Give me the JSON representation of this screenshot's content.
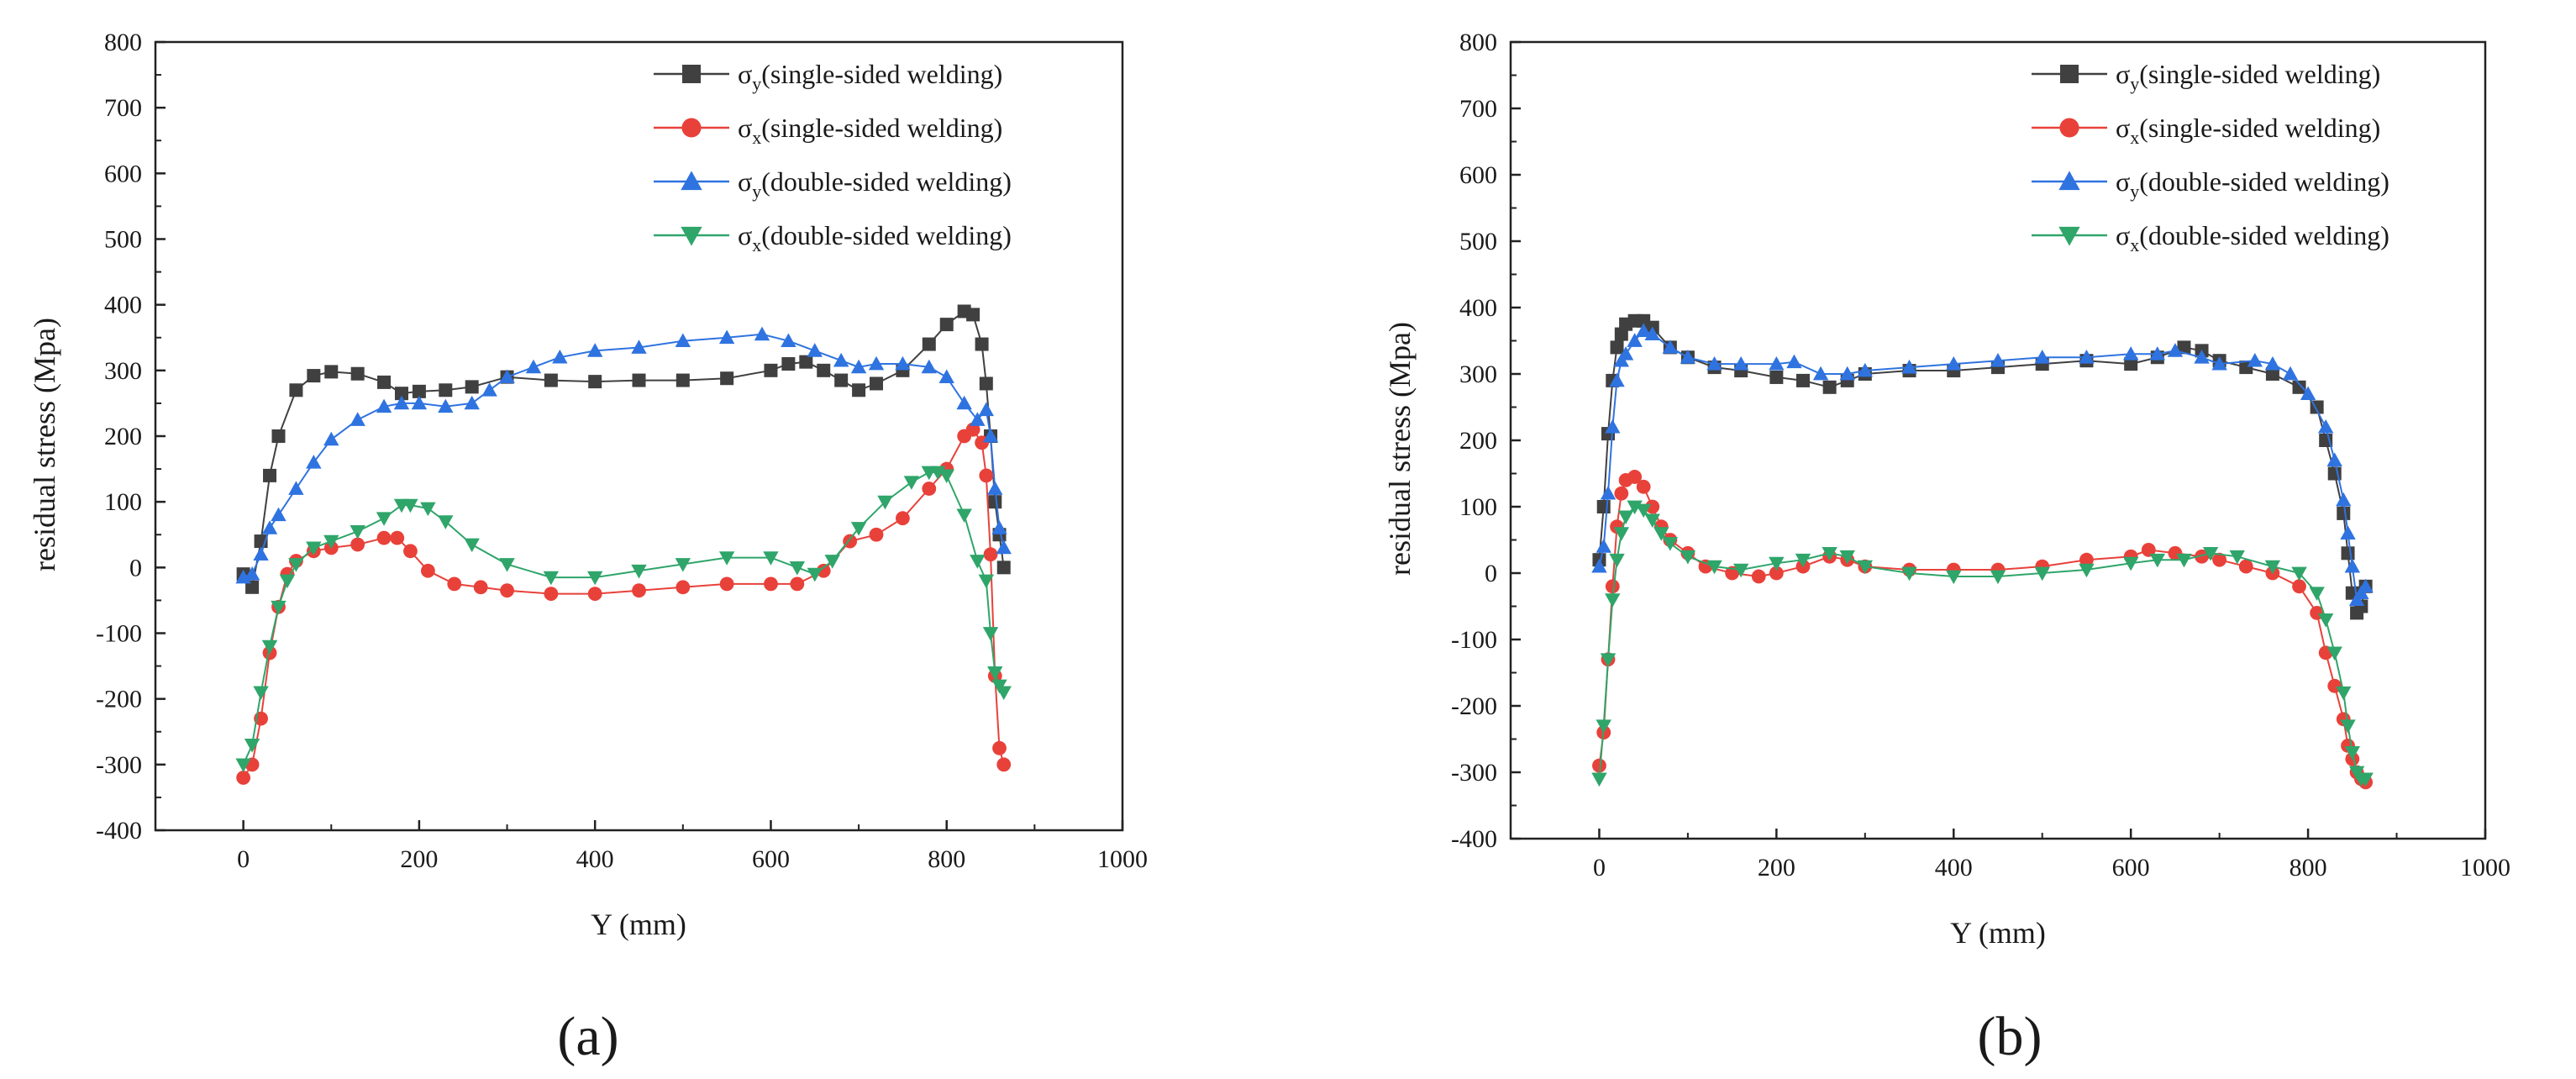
{
  "chart_data": [
    {
      "type": "line",
      "title": "",
      "panel_label": "(a)",
      "xlabel": "Y (mm)",
      "ylabel": "residual stress (Mpa)",
      "xlim": [
        -100,
        1000
      ],
      "ylim": [
        -400,
        800
      ],
      "xticks": [
        0,
        200,
        400,
        600,
        800,
        1000
      ],
      "yticks": [
        -400,
        -300,
        -200,
        -100,
        0,
        100,
        200,
        300,
        400,
        500,
        600,
        700,
        800
      ],
      "grid": false,
      "legend_position": "top-right",
      "series": [
        {
          "name": "σy(single-sided welding)",
          "main": "σ",
          "sub": "y",
          "rest": "(single-sided welding)",
          "marker": "square",
          "color": "#404040",
          "x": [
            0,
            10,
            20,
            30,
            40,
            60,
            80,
            100,
            130,
            160,
            180,
            200,
            230,
            260,
            300,
            350,
            400,
            450,
            500,
            550,
            600,
            620,
            640,
            660,
            680,
            700,
            720,
            750,
            780,
            800,
            820,
            830,
            840,
            845,
            850,
            855,
            860,
            865
          ],
          "y": [
            -10,
            -30,
            40,
            140,
            200,
            270,
            292,
            298,
            295,
            282,
            265,
            268,
            270,
            275,
            290,
            285,
            283,
            285,
            285,
            288,
            300,
            310,
            313,
            300,
            285,
            270,
            280,
            300,
            340,
            370,
            390,
            385,
            340,
            280,
            200,
            100,
            50,
            0
          ]
        },
        {
          "name": "σx(single-sided welding)",
          "main": "σ",
          "sub": "x",
          "rest": "(single-sided welding)",
          "marker": "circle",
          "color": "#e8413a",
          "x": [
            0,
            10,
            20,
            30,
            40,
            50,
            60,
            80,
            100,
            130,
            160,
            175,
            190,
            210,
            240,
            270,
            300,
            350,
            400,
            450,
            500,
            550,
            600,
            630,
            660,
            690,
            720,
            750,
            780,
            800,
            820,
            830,
            840,
            845,
            850,
            855,
            860,
            865
          ],
          "y": [
            -320,
            -300,
            -230,
            -130,
            -60,
            -10,
            10,
            25,
            30,
            35,
            45,
            45,
            25,
            -5,
            -25,
            -30,
            -35,
            -40,
            -40,
            -35,
            -30,
            -25,
            -25,
            -25,
            -5,
            40,
            50,
            75,
            120,
            150,
            200,
            210,
            190,
            140,
            20,
            -165,
            -275,
            -300
          ]
        },
        {
          "name": "σy(double-sided welding)",
          "main": "σ",
          "sub": "y",
          "rest": "(double-sided welding)",
          "marker": "triangle-up",
          "color": "#2f73e0",
          "x": [
            0,
            10,
            20,
            30,
            40,
            60,
            80,
            100,
            130,
            160,
            180,
            200,
            230,
            260,
            280,
            300,
            330,
            360,
            400,
            450,
            500,
            550,
            590,
            620,
            650,
            680,
            700,
            720,
            750,
            780,
            800,
            820,
            835,
            845,
            850,
            855,
            860,
            865
          ],
          "y": [
            -15,
            -10,
            20,
            60,
            80,
            120,
            160,
            195,
            225,
            245,
            250,
            250,
            245,
            250,
            270,
            290,
            305,
            320,
            330,
            335,
            345,
            350,
            355,
            345,
            330,
            315,
            305,
            310,
            310,
            305,
            290,
            250,
            225,
            240,
            200,
            120,
            60,
            30
          ]
        },
        {
          "name": "σx(double-sided welding)",
          "main": "σ",
          "sub": "x",
          "rest": "(double-sided welding)",
          "marker": "triangle-down",
          "color": "#2fa56a",
          "x": [
            0,
            10,
            20,
            30,
            40,
            50,
            60,
            80,
            100,
            130,
            160,
            180,
            190,
            210,
            230,
            260,
            300,
            350,
            400,
            450,
            500,
            550,
            600,
            630,
            650,
            670,
            700,
            730,
            760,
            780,
            790,
            800,
            820,
            835,
            845,
            850,
            855,
            860,
            865
          ],
          "y": [
            -300,
            -270,
            -190,
            -120,
            -60,
            -20,
            5,
            30,
            40,
            55,
            75,
            95,
            95,
            90,
            70,
            35,
            5,
            -15,
            -15,
            -5,
            5,
            15,
            15,
            0,
            -10,
            10,
            60,
            100,
            130,
            145,
            145,
            140,
            80,
            10,
            -20,
            -100,
            -160,
            -180,
            -190
          ]
        }
      ]
    },
    {
      "type": "line",
      "title": "",
      "panel_label": "(b)",
      "xlabel": "Y (mm)",
      "ylabel": "residual stress (Mpa)",
      "xlim": [
        -100,
        1000
      ],
      "ylim": [
        -400,
        800
      ],
      "xticks": [
        0,
        200,
        400,
        600,
        800,
        1000
      ],
      "yticks": [
        -400,
        -300,
        -200,
        -100,
        0,
        100,
        200,
        300,
        400,
        500,
        600,
        700,
        800
      ],
      "grid": false,
      "legend_position": "top-right",
      "series": [
        {
          "name": "σy(single-sided welding)",
          "main": "σ",
          "sub": "y",
          "rest": "(single-sided welding)",
          "marker": "square",
          "color": "#404040",
          "x": [
            0,
            5,
            10,
            15,
            20,
            25,
            30,
            40,
            50,
            60,
            80,
            100,
            130,
            160,
            200,
            230,
            260,
            280,
            300,
            350,
            400,
            450,
            500,
            550,
            600,
            630,
            660,
            680,
            700,
            730,
            760,
            790,
            810,
            820,
            830,
            840,
            845,
            850,
            855,
            860,
            865
          ],
          "y": [
            20,
            100,
            210,
            290,
            340,
            360,
            375,
            380,
            380,
            370,
            340,
            325,
            310,
            305,
            295,
            290,
            280,
            290,
            300,
            305,
            305,
            310,
            315,
            320,
            315,
            325,
            340,
            335,
            320,
            310,
            300,
            280,
            250,
            200,
            150,
            90,
            30,
            -30,
            -60,
            -50,
            -20
          ]
        },
        {
          "name": "σx(single-sided welding)",
          "main": "σ",
          "sub": "x",
          "rest": "(single-sided welding)",
          "marker": "circle",
          "color": "#e8413a",
          "x": [
            0,
            5,
            10,
            15,
            20,
            25,
            30,
            40,
            50,
            60,
            70,
            80,
            100,
            120,
            150,
            180,
            200,
            230,
            260,
            280,
            300,
            350,
            400,
            450,
            500,
            550,
            600,
            620,
            650,
            680,
            700,
            730,
            760,
            790,
            810,
            820,
            830,
            840,
            845,
            850,
            855,
            860,
            865
          ],
          "y": [
            -290,
            -240,
            -130,
            -20,
            70,
            120,
            140,
            145,
            130,
            100,
            70,
            50,
            30,
            10,
            0,
            -5,
            0,
            10,
            25,
            20,
            10,
            5,
            5,
            5,
            10,
            20,
            25,
            35,
            30,
            25,
            20,
            10,
            0,
            -20,
            -60,
            -120,
            -170,
            -220,
            -260,
            -280,
            -300,
            -310,
            -315
          ]
        },
        {
          "name": "σy(double-sided welding)",
          "main": "σ",
          "sub": "y",
          "rest": "(double-sided welding)",
          "marker": "triangle-up",
          "color": "#2f73e0",
          "x": [
            0,
            5,
            10,
            15,
            20,
            25,
            30,
            40,
            50,
            60,
            80,
            100,
            130,
            160,
            200,
            220,
            250,
            280,
            300,
            350,
            400,
            450,
            500,
            550,
            600,
            630,
            650,
            680,
            700,
            740,
            760,
            780,
            800,
            820,
            830,
            840,
            845,
            850,
            855,
            860,
            865
          ],
          "y": [
            10,
            40,
            120,
            220,
            290,
            320,
            330,
            350,
            365,
            360,
            340,
            325,
            315,
            315,
            315,
            318,
            300,
            300,
            305,
            310,
            315,
            320,
            325,
            325,
            330,
            330,
            335,
            325,
            315,
            320,
            315,
            300,
            270,
            220,
            170,
            110,
            60,
            10,
            -40,
            -30,
            -20
          ]
        },
        {
          "name": "σx(double-sided welding)",
          "main": "σ",
          "sub": "x",
          "rest": "(double-sided welding)",
          "marker": "triangle-down",
          "color": "#2fa56a",
          "x": [
            0,
            5,
            10,
            15,
            20,
            25,
            30,
            40,
            50,
            60,
            70,
            80,
            100,
            130,
            160,
            200,
            230,
            260,
            280,
            300,
            350,
            400,
            450,
            500,
            550,
            600,
            630,
            660,
            690,
            720,
            760,
            790,
            810,
            820,
            830,
            840,
            845,
            850,
            855,
            860,
            865
          ],
          "y": [
            -310,
            -230,
            -130,
            -40,
            20,
            60,
            85,
            100,
            95,
            80,
            60,
            45,
            25,
            10,
            5,
            15,
            20,
            30,
            25,
            10,
            0,
            -5,
            -5,
            0,
            5,
            15,
            20,
            20,
            30,
            25,
            10,
            0,
            -30,
            -70,
            -120,
            -180,
            -230,
            -270,
            -300,
            -310,
            -310
          ]
        }
      ]
    }
  ]
}
